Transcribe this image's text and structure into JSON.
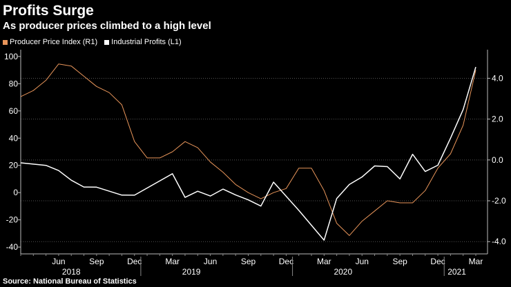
{
  "colors": {
    "background": "#000000",
    "ppi": "#e8955a",
    "profits": "#ffffff",
    "grid": "#555555",
    "text": "#ffffff"
  },
  "header": {
    "title": "Profits Surge",
    "subtitle": "As producer prices climbed to a high level"
  },
  "legend": {
    "items": [
      {
        "label": "Producer Price Index (R1)",
        "color": "#e8955a"
      },
      {
        "label": "Industrial Profits (L1)",
        "color": "#ffffff"
      }
    ]
  },
  "footer": {
    "source": "Source: National Bureau of Statistics"
  },
  "chart_data": {
    "type": "line",
    "title": "Profits Surge",
    "subtitle": "As producer prices climbed to a high level",
    "x_start": "2018-03",
    "x_end": "2021-03",
    "x_month_labels": [
      {
        "label": "Jun",
        "month_index": 3
      },
      {
        "label": "Sep",
        "month_index": 6
      },
      {
        "label": "Dec",
        "month_index": 9
      },
      {
        "label": "Mar",
        "month_index": 12
      },
      {
        "label": "Jun",
        "month_index": 15
      },
      {
        "label": "Sep",
        "month_index": 18
      },
      {
        "label": "Dec",
        "month_index": 21
      },
      {
        "label": "Mar",
        "month_index": 24
      },
      {
        "label": "Jun",
        "month_index": 27
      },
      {
        "label": "Sep",
        "month_index": 30
      },
      {
        "label": "Dec",
        "month_index": 33
      },
      {
        "label": "Mar",
        "month_index": 36
      }
    ],
    "x_year_labels": [
      {
        "label": "2018",
        "center_month_index": 4
      },
      {
        "label": "2019",
        "center_month_index": 13.5
      },
      {
        "label": "2020",
        "center_month_index": 25.5
      },
      {
        "label": "2021",
        "center_month_index": 34.5
      }
    ],
    "x_year_separators": [
      9.5,
      21.5,
      33.5
    ],
    "left_axis": {
      "label": "Industrial Profits (L1)",
      "ylim": [
        -45,
        105
      ],
      "ticks": [
        100,
        80,
        60,
        40,
        20,
        0,
        -20,
        -40
      ],
      "tick_labels": [
        "100",
        "80",
        "60",
        "40",
        "20",
        "0",
        "-20",
        "-40"
      ]
    },
    "right_axis": {
      "label": "Producer Price Index (R1)",
      "ylim": [
        -4.6,
        5.4
      ],
      "ticks": [
        4.0,
        2.0,
        0.0,
        -2.0,
        -4.0
      ],
      "tick_labels": [
        "4.0",
        "2.0",
        "0.0",
        "-2.0",
        "-4.0"
      ],
      "gridlines": true
    },
    "series": [
      {
        "name": "Producer Price Index (R1)",
        "axis": "right",
        "x": [
          0,
          1,
          2,
          3,
          4,
          5,
          6,
          7,
          8,
          9,
          10,
          11,
          12,
          13,
          14,
          15,
          16,
          17,
          18,
          19,
          20,
          21,
          22,
          23,
          24,
          25,
          26,
          27,
          28,
          29,
          30,
          31,
          32,
          33,
          34,
          35,
          36
        ],
        "values": [
          3.1,
          3.4,
          3.9,
          4.7,
          4.6,
          4.1,
          3.6,
          3.3,
          2.7,
          0.9,
          0.1,
          0.1,
          0.4,
          0.9,
          0.6,
          -0.1,
          -0.6,
          -1.2,
          -1.6,
          -1.9,
          -1.6,
          -1.4,
          -0.4,
          -0.4,
          -1.5,
          -3.1,
          -3.7,
          -3.0,
          -2.5,
          -2.0,
          -2.1,
          -2.1,
          -1.5,
          -0.4,
          0.3,
          1.7,
          4.4
        ]
      },
      {
        "name": "Industrial Profits (L1)",
        "axis": "left",
        "x": [
          0,
          2,
          3,
          4,
          5,
          6,
          8,
          9,
          12,
          13,
          14,
          15,
          16,
          17,
          18,
          19,
          20,
          22,
          24,
          25,
          26,
          27,
          28,
          29,
          30,
          31,
          32,
          33,
          34,
          35,
          36
        ],
        "values": [
          21.9,
          20.0,
          16.2,
          9.1,
          4.1,
          4.0,
          -1.8,
          -1.9,
          13.9,
          -3.5,
          1.0,
          -2.5,
          2.6,
          -1.7,
          -5.3,
          -9.9,
          7.7,
          -13.0,
          -34.9,
          -4.3,
          6.0,
          11.5,
          19.6,
          19.1,
          10.1,
          28.2,
          15.5,
          20.1,
          40.0,
          61.0,
          92.3
        ]
      }
    ]
  }
}
